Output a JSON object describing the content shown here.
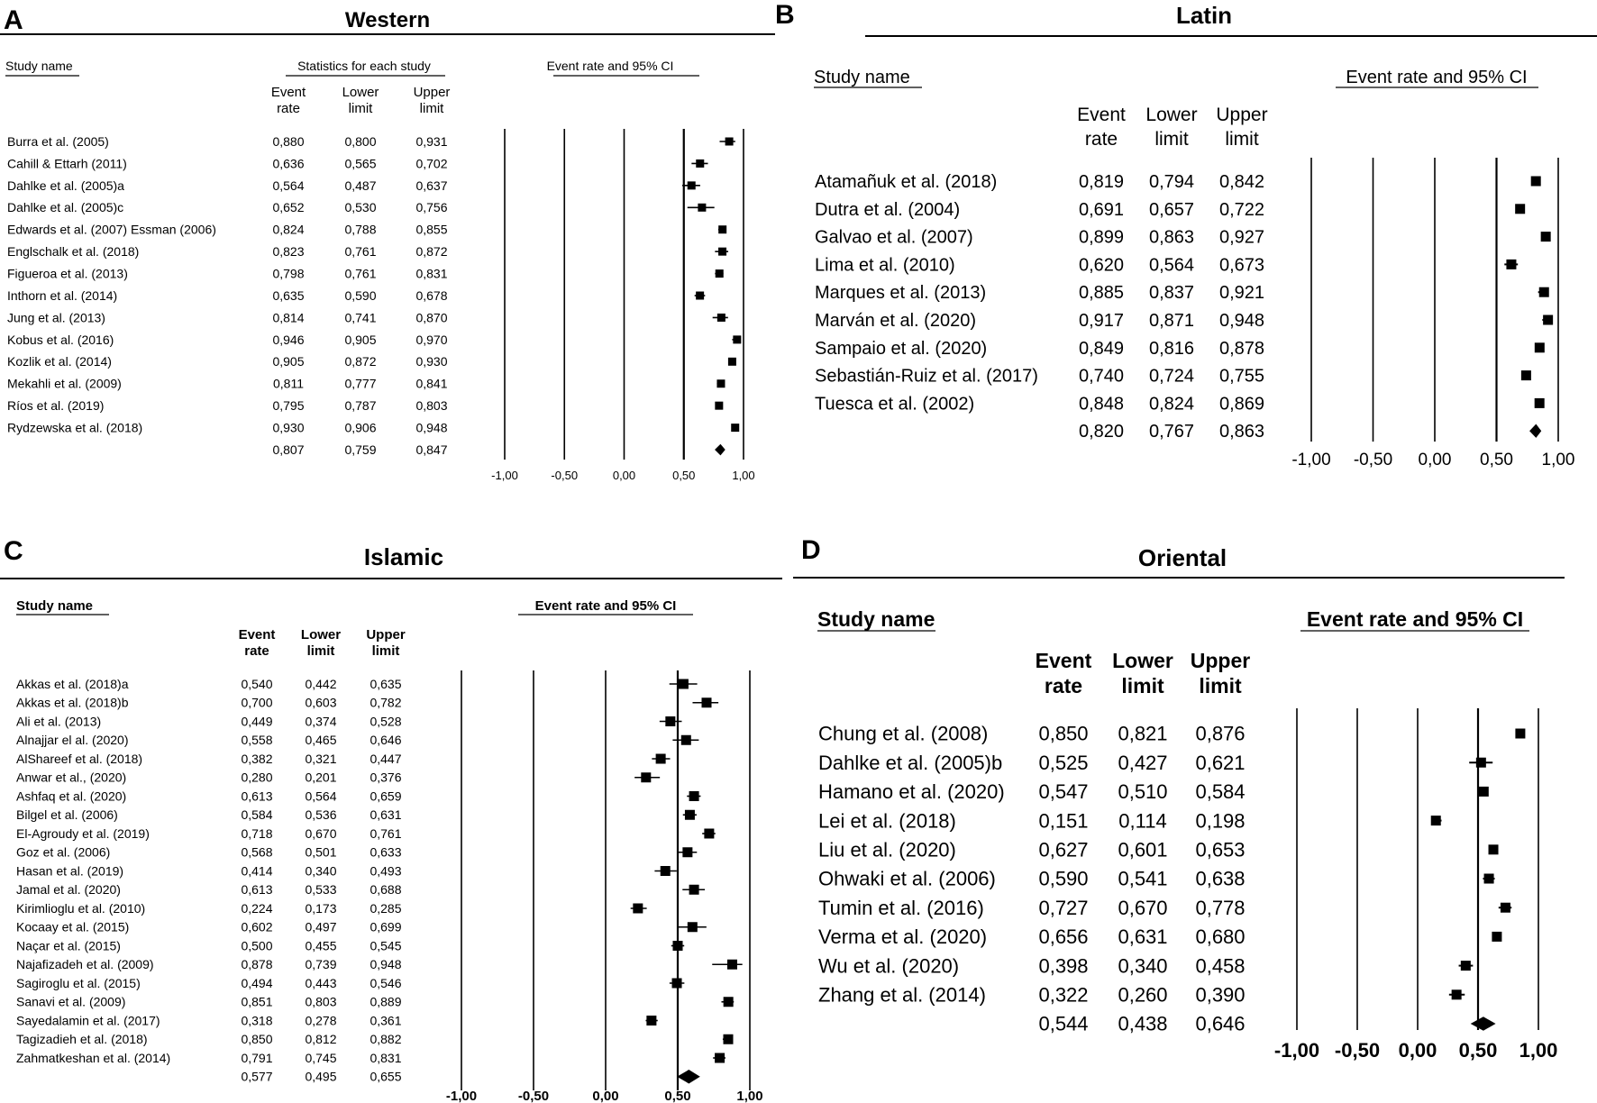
{
  "panels": [
    {
      "letter": "A",
      "title": "Western",
      "study_header": "Study name",
      "stats_header": "Statistics for each study",
      "ci_header": "Event rate and 95% CI",
      "col_event": [
        "Event",
        "rate"
      ],
      "col_lower": [
        "Lower",
        "limit"
      ],
      "col_upper": [
        "Upper",
        "limit"
      ]
    },
    {
      "letter": "B",
      "title": "Latin",
      "study_header": "Study name",
      "ci_header": "Event rate and 95% CI",
      "col_event": [
        "Event",
        "rate"
      ],
      "col_lower": [
        "Lower",
        "limit"
      ],
      "col_upper": [
        "Upper",
        "limit"
      ]
    },
    {
      "letter": "C",
      "title": "Islamic",
      "study_header": "Study name",
      "ci_header": "Event rate and 95% CI",
      "col_event": [
        "Event",
        "rate"
      ],
      "col_lower": [
        "Lower",
        "limit"
      ],
      "col_upper": [
        "Upper",
        "limit"
      ]
    },
    {
      "letter": "D",
      "title": "Oriental",
      "study_header": "Study name",
      "ci_header": "Event rate and 95% CI",
      "col_event": [
        "Event",
        "rate"
      ],
      "col_lower": [
        "Lower",
        "limit"
      ],
      "col_upper": [
        "Upper",
        "limit"
      ]
    }
  ],
  "chart_data": [
    {
      "type": "forest",
      "title": "Western",
      "xlim": [
        -1.0,
        1.0
      ],
      "ticks": [
        "-1,00",
        "-0,50",
        "0,00",
        "0,50",
        "1,00"
      ],
      "studies": [
        {
          "name": "Burra et al. (2005)",
          "rate": 0.88,
          "lower": 0.8,
          "upper": 0.931
        },
        {
          "name": "Cahill & Ettarh (2011)",
          "rate": 0.636,
          "lower": 0.565,
          "upper": 0.702
        },
        {
          "name": "Dahlke et al. (2005)a",
          "rate": 0.564,
          "lower": 0.487,
          "upper": 0.637
        },
        {
          "name": "Dahlke et al. (2005)c",
          "rate": 0.652,
          "lower": 0.53,
          "upper": 0.756
        },
        {
          "name": "Edwards et al. (2007) Essman (2006)",
          "rate": 0.824,
          "lower": 0.788,
          "upper": 0.855
        },
        {
          "name": "Englschalk et al. (2018)",
          "rate": 0.823,
          "lower": 0.761,
          "upper": 0.872
        },
        {
          "name": "Figueroa et al. (2013)",
          "rate": 0.798,
          "lower": 0.761,
          "upper": 0.831
        },
        {
          "name": "Inthorn et al. (2014)",
          "rate": 0.635,
          "lower": 0.59,
          "upper": 0.678
        },
        {
          "name": "Jung et al. (2013)",
          "rate": 0.814,
          "lower": 0.741,
          "upper": 0.87
        },
        {
          "name": "Kobus et al. (2016)",
          "rate": 0.946,
          "lower": 0.905,
          "upper": 0.97
        },
        {
          "name": "Kozlik et al. (2014)",
          "rate": 0.905,
          "lower": 0.872,
          "upper": 0.93
        },
        {
          "name": "Mekahli et al. (2009)",
          "rate": 0.811,
          "lower": 0.777,
          "upper": 0.841
        },
        {
          "name": "Ríos et al. (2019)",
          "rate": 0.795,
          "lower": 0.787,
          "upper": 0.803
        },
        {
          "name": "Rydzewska et al. (2018)",
          "rate": 0.93,
          "lower": 0.906,
          "upper": 0.948
        }
      ],
      "pooled": {
        "rate": 0.807,
        "lower": 0.759,
        "upper": 0.847
      }
    },
    {
      "type": "forest",
      "title": "Latin",
      "xlim": [
        -1.0,
        1.0
      ],
      "ticks": [
        "-1,00",
        "-0,50",
        "0,00",
        "0,50",
        "1,00"
      ],
      "studies": [
        {
          "name": "Atamañuk et al. (2018)",
          "rate": 0.819,
          "lower": 0.794,
          "upper": 0.842
        },
        {
          "name": "Dutra et al. (2004)",
          "rate": 0.691,
          "lower": 0.657,
          "upper": 0.722
        },
        {
          "name": "Galvao et al. (2007)",
          "rate": 0.899,
          "lower": 0.863,
          "upper": 0.927
        },
        {
          "name": "Lima et al. (2010)",
          "rate": 0.62,
          "lower": 0.564,
          "upper": 0.673
        },
        {
          "name": "Marques et al. (2013)",
          "rate": 0.885,
          "lower": 0.837,
          "upper": 0.921
        },
        {
          "name": "Marván et al. (2020)",
          "rate": 0.917,
          "lower": 0.871,
          "upper": 0.948
        },
        {
          "name": "Sampaio et al. (2020)",
          "rate": 0.849,
          "lower": 0.816,
          "upper": 0.878
        },
        {
          "name": "Sebastián-Ruiz et al. (2017)",
          "rate": 0.74,
          "lower": 0.724,
          "upper": 0.755
        },
        {
          "name": "Tuesca et al. (2002)",
          "rate": 0.848,
          "lower": 0.824,
          "upper": 0.869
        }
      ],
      "pooled": {
        "rate": 0.82,
        "lower": 0.767,
        "upper": 0.863
      }
    },
    {
      "type": "forest",
      "title": "Islamic",
      "xlim": [
        -1.0,
        1.0
      ],
      "ticks": [
        "-1,00",
        "-0,50",
        "0,00",
        "0,50",
        "1,00"
      ],
      "studies": [
        {
          "name": "Akkas et al. (2018)a",
          "rate": 0.54,
          "lower": 0.442,
          "upper": 0.635
        },
        {
          "name": "Akkas et al. (2018)b",
          "rate": 0.7,
          "lower": 0.603,
          "upper": 0.782
        },
        {
          "name": "Ali et al. (2013)",
          "rate": 0.449,
          "lower": 0.374,
          "upper": 0.528
        },
        {
          "name": "Alnajjar el al. (2020)",
          "rate": 0.558,
          "lower": 0.465,
          "upper": 0.646
        },
        {
          "name": "AlShareef et al. (2018)",
          "rate": 0.382,
          "lower": 0.321,
          "upper": 0.447
        },
        {
          "name": "Anwar et al., (2020)",
          "rate": 0.28,
          "lower": 0.201,
          "upper": 0.376
        },
        {
          "name": "Ashfaq et al. (2020)",
          "rate": 0.613,
          "lower": 0.564,
          "upper": 0.659
        },
        {
          "name": "Bilgel et al. (2006)",
          "rate": 0.584,
          "lower": 0.536,
          "upper": 0.631
        },
        {
          "name": "El-Agroudy et al. (2019)",
          "rate": 0.718,
          "lower": 0.67,
          "upper": 0.761
        },
        {
          "name": "Goz et al. (2006)",
          "rate": 0.568,
          "lower": 0.501,
          "upper": 0.633
        },
        {
          "name": "Hasan et al. (2019)",
          "rate": 0.414,
          "lower": 0.34,
          "upper": 0.493
        },
        {
          "name": "Jamal et al. (2020)",
          "rate": 0.613,
          "lower": 0.533,
          "upper": 0.688
        },
        {
          "name": "Kirimlioglu et al. (2010)",
          "rate": 0.224,
          "lower": 0.173,
          "upper": 0.285
        },
        {
          "name": "Kocaay et al. (2015)",
          "rate": 0.602,
          "lower": 0.497,
          "upper": 0.699
        },
        {
          "name": "Naçar et al. (2015)",
          "rate": 0.5,
          "lower": 0.455,
          "upper": 0.545
        },
        {
          "name": "Najafizadeh et al. (2009)",
          "rate": 0.878,
          "lower": 0.739,
          "upper": 0.948
        },
        {
          "name": "Sagiroglu et al. (2015)",
          "rate": 0.494,
          "lower": 0.443,
          "upper": 0.546
        },
        {
          "name": "Sanavi et al. (2009)",
          "rate": 0.851,
          "lower": 0.803,
          "upper": 0.889
        },
        {
          "name": "Sayedalamin et al. (2017)",
          "rate": 0.318,
          "lower": 0.278,
          "upper": 0.361
        },
        {
          "name": "Tagizadieh et al. (2018)",
          "rate": 0.85,
          "lower": 0.812,
          "upper": 0.882
        },
        {
          "name": "Zahmatkeshan et al. (2014)",
          "rate": 0.791,
          "lower": 0.745,
          "upper": 0.831
        }
      ],
      "pooled": {
        "rate": 0.577,
        "lower": 0.495,
        "upper": 0.655
      }
    },
    {
      "type": "forest",
      "title": "Oriental",
      "xlim": [
        -1.0,
        1.0
      ],
      "ticks": [
        "-1,00",
        "-0,50",
        "0,00",
        "0,50",
        "1,00"
      ],
      "studies": [
        {
          "name": "Chung et al. (2008)",
          "rate": 0.85,
          "lower": 0.821,
          "upper": 0.876
        },
        {
          "name": "Dahlke et al. (2005)b",
          "rate": 0.525,
          "lower": 0.427,
          "upper": 0.621
        },
        {
          "name": "Hamano et al. (2020)",
          "rate": 0.547,
          "lower": 0.51,
          "upper": 0.584
        },
        {
          "name": "Lei et al. (2018)",
          "rate": 0.151,
          "lower": 0.114,
          "upper": 0.198
        },
        {
          "name": "Liu et al. (2020)",
          "rate": 0.627,
          "lower": 0.601,
          "upper": 0.653
        },
        {
          "name": "Ohwaki et al. (2006)",
          "rate": 0.59,
          "lower": 0.541,
          "upper": 0.638
        },
        {
          "name": "Tumin et al. (2016)",
          "rate": 0.727,
          "lower": 0.67,
          "upper": 0.778
        },
        {
          "name": "Verma et al. (2020)",
          "rate": 0.656,
          "lower": 0.631,
          "upper": 0.68
        },
        {
          "name": "Wu et al. (2020)",
          "rate": 0.398,
          "lower": 0.34,
          "upper": 0.458
        },
        {
          "name": "Zhang et al. (2014)",
          "rate": 0.322,
          "lower": 0.26,
          "upper": 0.39
        }
      ],
      "pooled": {
        "rate": 0.544,
        "lower": 0.438,
        "upper": 0.646
      }
    }
  ]
}
